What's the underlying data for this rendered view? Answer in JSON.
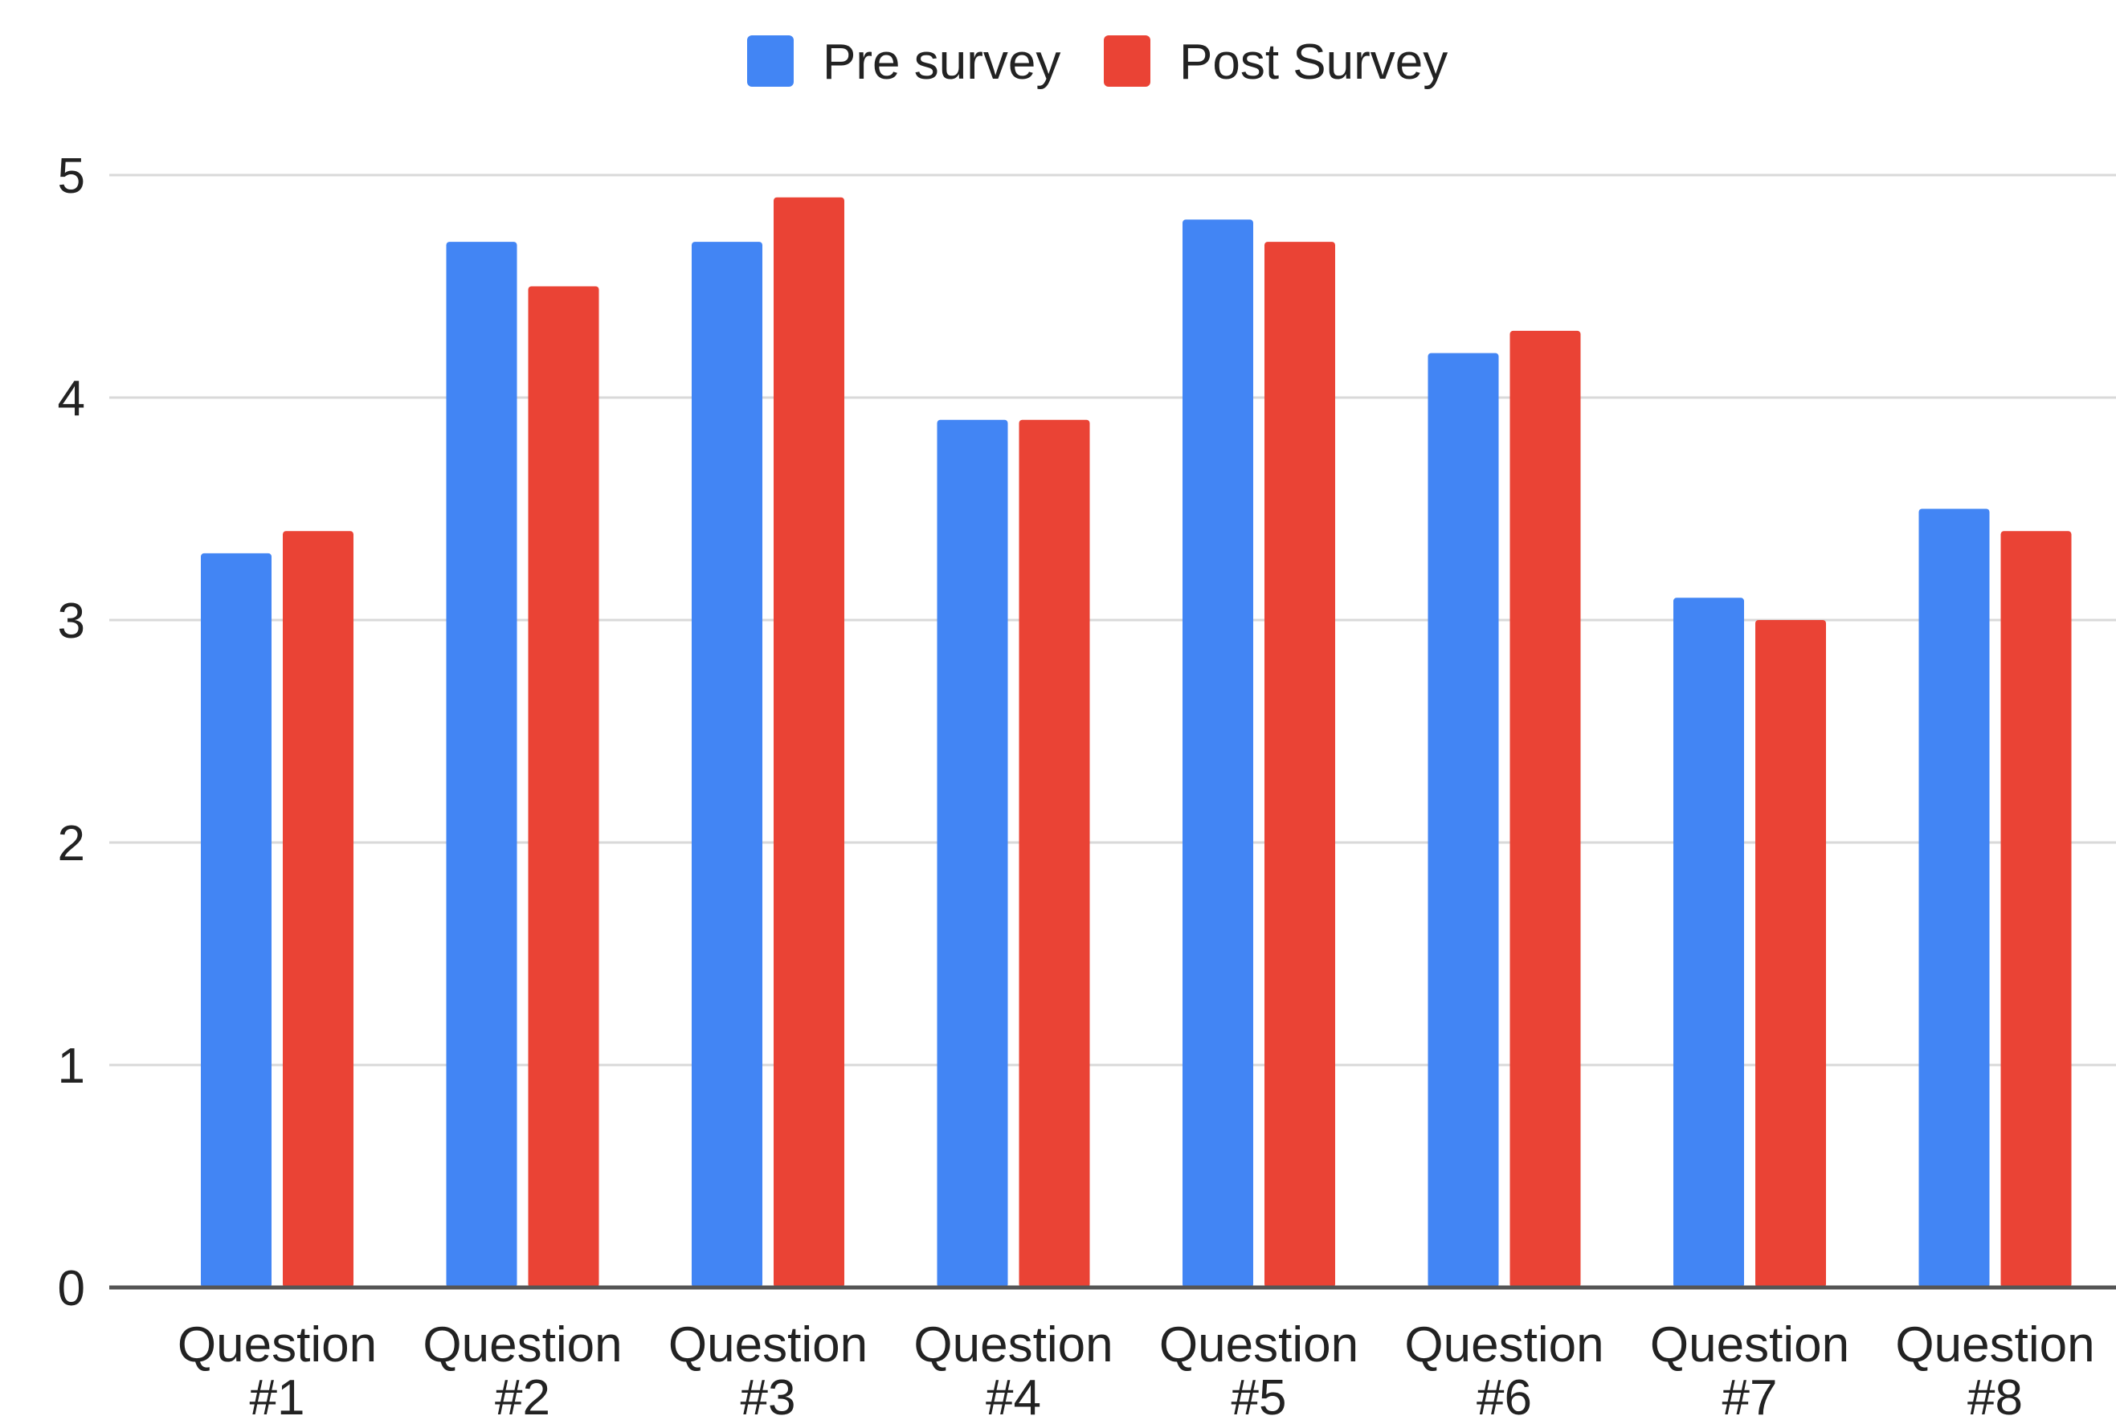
{
  "chart_data": {
    "type": "bar",
    "title": "",
    "xlabel": "",
    "ylabel": "",
    "ylim": [
      0,
      5
    ],
    "yticks": [
      "0",
      "1",
      "2",
      "3",
      "4",
      "5"
    ],
    "grid": true,
    "legend_position": "top-center",
    "categories": [
      [
        "Question",
        "#1"
      ],
      [
        "Question",
        "#2"
      ],
      [
        "Question",
        "#3"
      ],
      [
        "Question",
        "#4"
      ],
      [
        "Question",
        "#5"
      ],
      [
        "Question",
        "#6"
      ],
      [
        "Question",
        "#7"
      ],
      [
        "Question",
        "#8"
      ]
    ],
    "series": [
      {
        "name": "Pre survey",
        "color": "#4285f4",
        "values": [
          3.3,
          4.7,
          4.7,
          3.9,
          4.8,
          4.2,
          3.1,
          3.5
        ]
      },
      {
        "name": "Post Survey",
        "color": "#ea4335",
        "values": [
          3.4,
          4.5,
          4.9,
          3.9,
          4.7,
          4.3,
          3.0,
          3.4
        ]
      }
    ],
    "colors": {
      "grid": "#d9d9d9",
      "axis": "#555555",
      "text": "#222222"
    }
  }
}
